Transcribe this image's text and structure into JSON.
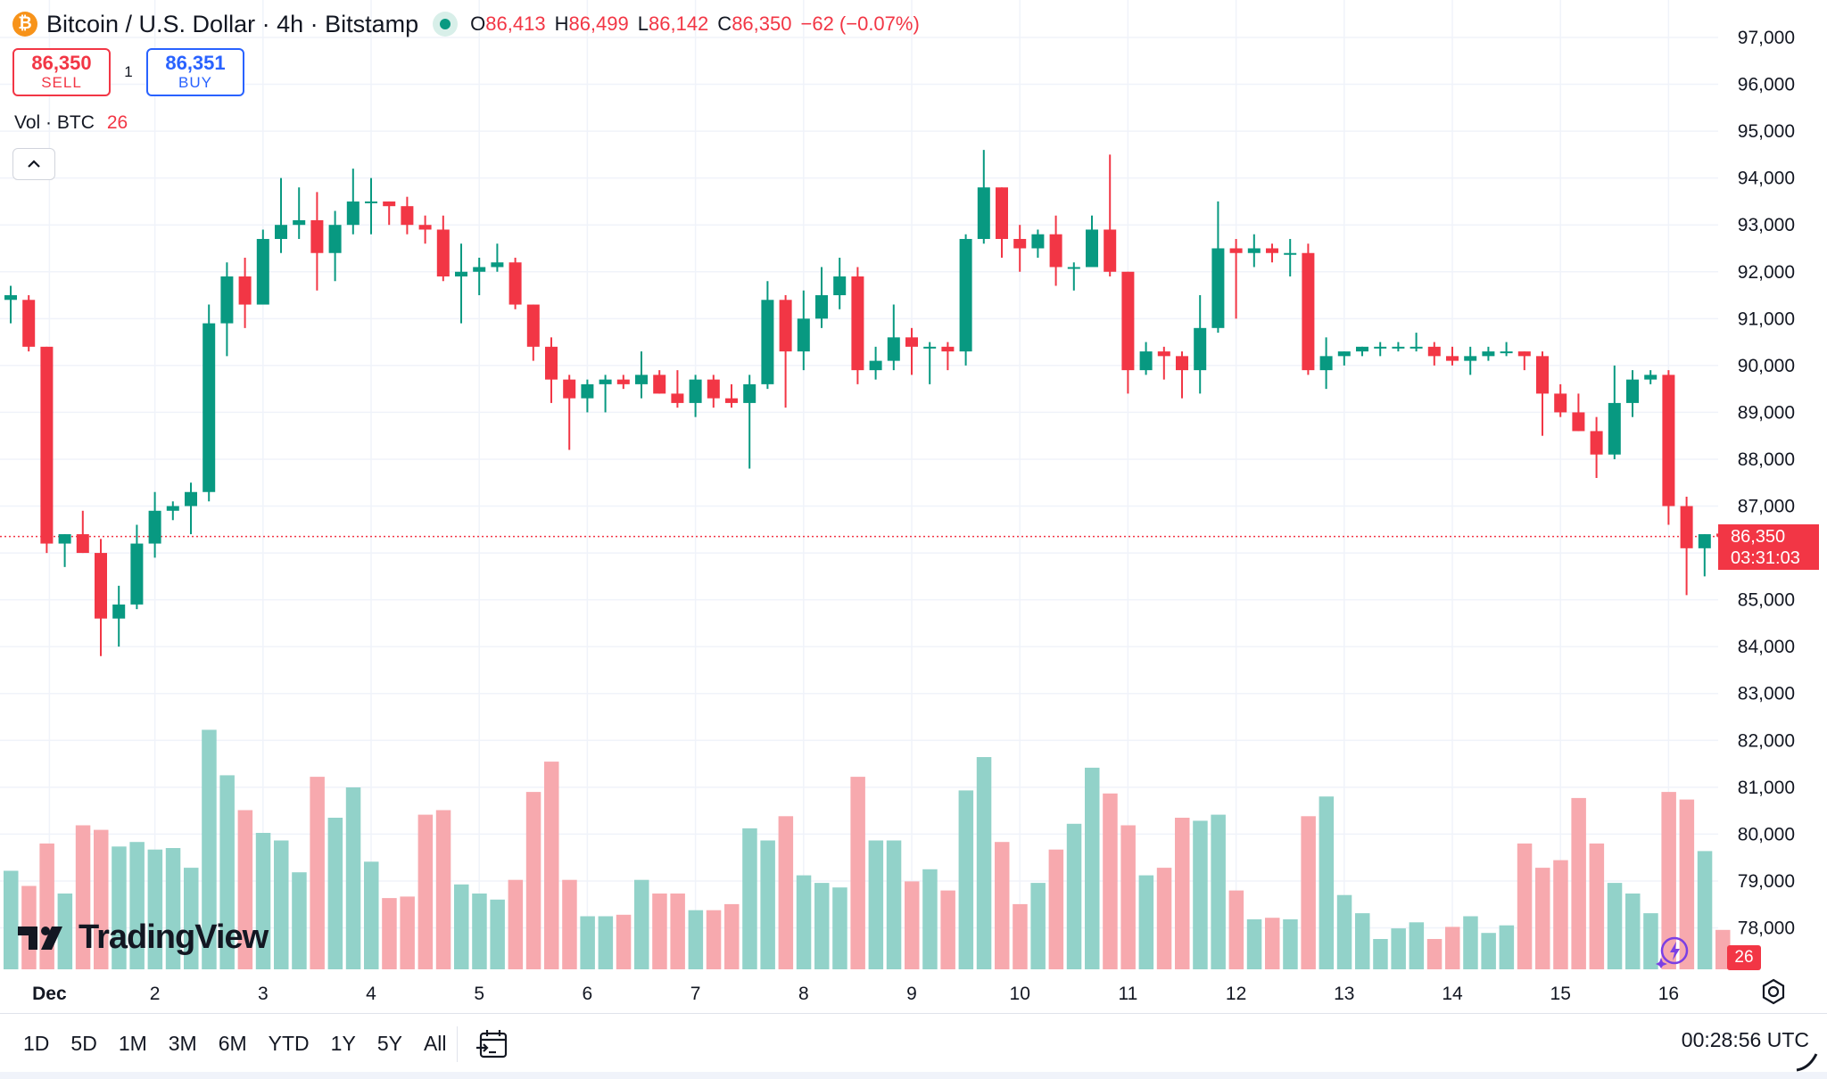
{
  "header": {
    "coin_icon": "bitcoin-icon",
    "symbol": "Bitcoin / U.S. Dollar · 4h · Bitstamp",
    "ohlc": {
      "o_label": "O",
      "o": "86,413",
      "h_label": "H",
      "h": "86,499",
      "l_label": "L",
      "l": "86,142",
      "c_label": "C",
      "c": "86,350",
      "change": "−62 (−0.07%)"
    }
  },
  "trade": {
    "sell_price": "86,350",
    "sell_label": "SELL",
    "qty": "1",
    "buy_price": "86,351",
    "buy_label": "BUY"
  },
  "volume_legend": {
    "label": "Vol · BTC",
    "value": "26"
  },
  "watermark": "TradingView",
  "last_price": {
    "price": "86,350",
    "countdown": "03:31:03"
  },
  "volume_tag": "26",
  "toolbar": {
    "ranges": [
      "1D",
      "5D",
      "1M",
      "3M",
      "6M",
      "YTD",
      "1Y",
      "5Y",
      "All"
    ],
    "time": "00:28:56 UTC"
  },
  "colors": {
    "up": "#089981",
    "down": "#f23645",
    "up_vol": "#92d2c9",
    "down_vol": "#f7a9ae",
    "accent": "#2962ff"
  },
  "chart_data": {
    "type": "candlestick",
    "title": "Bitcoin / U.S. Dollar · 4h · Bitstamp",
    "interval": "4h",
    "ylim": [
      77000,
      97500
    ],
    "y_ticks": [
      "97,000",
      "96,000",
      "95,000",
      "94,000",
      "93,000",
      "92,000",
      "91,000",
      "90,000",
      "89,000",
      "88,000",
      "87,000",
      "86,000",
      "85,000",
      "84,000",
      "83,000",
      "82,000",
      "81,000",
      "80,000",
      "79,000",
      "78,000"
    ],
    "x_ticks": [
      {
        "label": "Dec",
        "bar": 2
      },
      {
        "label": "2",
        "bar": 8
      },
      {
        "label": "3",
        "bar": 14
      },
      {
        "label": "4",
        "bar": 20
      },
      {
        "label": "5",
        "bar": 26
      },
      {
        "label": "6",
        "bar": 32
      },
      {
        "label": "7",
        "bar": 38
      },
      {
        "label": "8",
        "bar": 44
      },
      {
        "label": "9",
        "bar": 50
      },
      {
        "label": "10",
        "bar": 56
      },
      {
        "label": "11",
        "bar": 62
      },
      {
        "label": "12",
        "bar": 68
      },
      {
        "label": "13",
        "bar": 74
      },
      {
        "label": "14",
        "bar": 80
      },
      {
        "label": "15",
        "bar": 86
      },
      {
        "label": "16",
        "bar": 92
      }
    ],
    "candles": [
      [
        91400,
        91700,
        90900,
        91500,
        0.65
      ],
      [
        91400,
        91500,
        90300,
        90400,
        0.55
      ],
      [
        90400,
        90400,
        86000,
        86200,
        0.83
      ],
      [
        86200,
        86400,
        85700,
        86400,
        0.5
      ],
      [
        86400,
        86900,
        86000,
        86000,
        0.95
      ],
      [
        86000,
        86300,
        83800,
        84600,
        0.92
      ],
      [
        84600,
        85300,
        84000,
        84900,
        0.81
      ],
      [
        84900,
        86600,
        84800,
        86200,
        0.84
      ],
      [
        86200,
        87300,
        85900,
        86900,
        0.79
      ],
      [
        86900,
        87100,
        86700,
        87000,
        0.8
      ],
      [
        87000,
        87500,
        86400,
        87300,
        0.67
      ],
      [
        87300,
        91300,
        87100,
        90900,
        1.58
      ],
      [
        90900,
        92200,
        90200,
        91900,
        1.28
      ],
      [
        91900,
        92300,
        90800,
        91300,
        1.05
      ],
      [
        91300,
        92900,
        91300,
        92700,
        0.9
      ],
      [
        92700,
        94000,
        92400,
        93000,
        0.85
      ],
      [
        93000,
        93800,
        92700,
        93100,
        0.64
      ],
      [
        93100,
        93700,
        91600,
        92400,
        1.27
      ],
      [
        92400,
        93300,
        91800,
        93000,
        1.0
      ],
      [
        93000,
        94200,
        92800,
        93500,
        1.2
      ],
      [
        93500,
        94000,
        92800,
        93500,
        0.71
      ],
      [
        93500,
        93500,
        93000,
        93400,
        0.47
      ],
      [
        93400,
        93600,
        92800,
        93000,
        0.48
      ],
      [
        93000,
        93200,
        92600,
        92900,
        1.02
      ],
      [
        92900,
        93200,
        91800,
        91900,
        1.05
      ],
      [
        91900,
        92600,
        90900,
        92000,
        0.56
      ],
      [
        92000,
        92300,
        91500,
        92100,
        0.5
      ],
      [
        92100,
        92600,
        92000,
        92200,
        0.46
      ],
      [
        92200,
        92300,
        91200,
        91300,
        0.59
      ],
      [
        91300,
        91300,
        90100,
        90400,
        1.17
      ],
      [
        90400,
        90600,
        89200,
        89700,
        1.37
      ],
      [
        89700,
        89800,
        88200,
        89300,
        0.59
      ],
      [
        89300,
        89700,
        89000,
        89600,
        0.35
      ],
      [
        89600,
        89800,
        89000,
        89700,
        0.35
      ],
      [
        89700,
        89800,
        89500,
        89600,
        0.36
      ],
      [
        89600,
        90300,
        89300,
        89800,
        0.59
      ],
      [
        89800,
        89900,
        89400,
        89400,
        0.5
      ],
      [
        89400,
        89900,
        89100,
        89200,
        0.5
      ],
      [
        89200,
        89800,
        88900,
        89700,
        0.39
      ],
      [
        89700,
        89800,
        89100,
        89300,
        0.39
      ],
      [
        89300,
        89600,
        89100,
        89200,
        0.43
      ],
      [
        89200,
        89800,
        87800,
        89600,
        0.93
      ],
      [
        89600,
        91800,
        89500,
        91400,
        0.85
      ],
      [
        91400,
        91500,
        89100,
        90300,
        1.01
      ],
      [
        90300,
        91600,
        89900,
        91000,
        0.62
      ],
      [
        91000,
        92100,
        90800,
        91500,
        0.57
      ],
      [
        91500,
        92300,
        91200,
        91900,
        0.54
      ],
      [
        91900,
        92100,
        89600,
        89900,
        1.27
      ],
      [
        89900,
        90400,
        89700,
        90100,
        0.85
      ],
      [
        90100,
        91300,
        89900,
        90600,
        0.85
      ],
      [
        90600,
        90800,
        89800,
        90400,
        0.58
      ],
      [
        90400,
        90500,
        89600,
        90400,
        0.66
      ],
      [
        90400,
        90500,
        89900,
        90300,
        0.52
      ],
      [
        90300,
        92800,
        90000,
        92700,
        1.18
      ],
      [
        92700,
        94600,
        92600,
        93800,
        1.4
      ],
      [
        93800,
        93800,
        92300,
        92700,
        0.84
      ],
      [
        92700,
        93000,
        92000,
        92500,
        0.43
      ],
      [
        92500,
        92900,
        92300,
        92800,
        0.57
      ],
      [
        92800,
        93200,
        91700,
        92100,
        0.79
      ],
      [
        92100,
        92200,
        91600,
        92100,
        0.96
      ],
      [
        92100,
        93200,
        92100,
        92900,
        1.33
      ],
      [
        92900,
        94500,
        91900,
        92000,
        1.16
      ],
      [
        92000,
        92000,
        89400,
        89900,
        0.95
      ],
      [
        89900,
        90500,
        89800,
        90300,
        0.62
      ],
      [
        90300,
        90400,
        89700,
        90200,
        0.67
      ],
      [
        90200,
        90300,
        89300,
        89900,
        1.0
      ],
      [
        89900,
        91500,
        89400,
        90800,
        0.98
      ],
      [
        90800,
        93500,
        90700,
        92500,
        1.02
      ],
      [
        92500,
        92700,
        91000,
        92400,
        0.52
      ],
      [
        92400,
        92800,
        92100,
        92500,
        0.33
      ],
      [
        92500,
        92600,
        92200,
        92400,
        0.34
      ],
      [
        92400,
        92700,
        91900,
        92400,
        0.33
      ],
      [
        92400,
        92600,
        89800,
        89900,
        1.01
      ],
      [
        89900,
        90600,
        89500,
        90200,
        1.14
      ],
      [
        90200,
        90300,
        90000,
        90300,
        0.49
      ],
      [
        90300,
        90400,
        90200,
        90400,
        0.37
      ],
      [
        90400,
        90500,
        90200,
        90400,
        0.2
      ],
      [
        90400,
        90500,
        90300,
        90400,
        0.27
      ],
      [
        90400,
        90700,
        90300,
        90400,
        0.31
      ],
      [
        90400,
        90500,
        90000,
        90200,
        0.2
      ],
      [
        90200,
        90400,
        90000,
        90100,
        0.28
      ],
      [
        90100,
        90400,
        89800,
        90200,
        0.35
      ],
      [
        90200,
        90400,
        90100,
        90300,
        0.24
      ],
      [
        90300,
        90500,
        90200,
        90300,
        0.29
      ],
      [
        90300,
        90300,
        89900,
        90200,
        0.83
      ],
      [
        90200,
        90300,
        88500,
        89400,
        0.67
      ],
      [
        89400,
        89600,
        88900,
        89000,
        0.72
      ],
      [
        89000,
        89400,
        88600,
        88600,
        1.13
      ],
      [
        88600,
        88900,
        87600,
        88100,
        0.83
      ],
      [
        88100,
        90000,
        88000,
        89200,
        0.57
      ],
      [
        89200,
        89900,
        88900,
        89700,
        0.5
      ],
      [
        89700,
        89900,
        89600,
        89800,
        0.37
      ],
      [
        89800,
        89900,
        86600,
        87000,
        1.17
      ],
      [
        87000,
        87200,
        85100,
        86100,
        1.12
      ],
      [
        86100,
        86400,
        85500,
        86400,
        0.78
      ],
      [
        86413,
        86499,
        86142,
        86350,
        0.26
      ]
    ]
  }
}
